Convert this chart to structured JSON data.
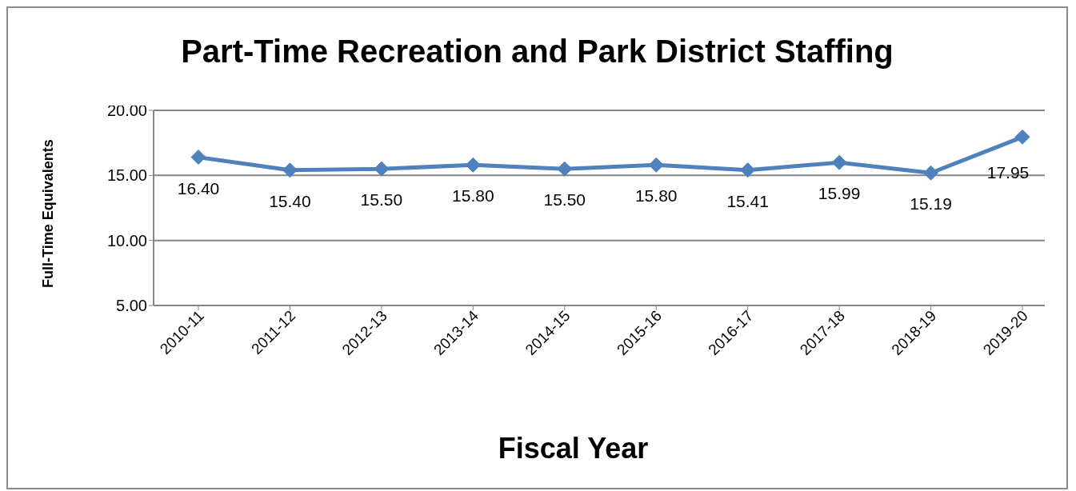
{
  "chart_data": {
    "type": "line",
    "title": "Part-Time Recreation and Park District Staffing",
    "xlabel": "Fiscal Year",
    "ylabel": "Full-Time Equivalents",
    "categories": [
      "2010-11",
      "2011-12",
      "2012-13",
      "2013-14",
      "2014-15",
      "2015-16",
      "2016-17",
      "2017-18",
      "2018-19",
      "2019-20"
    ],
    "series": [
      {
        "color": "#4f81bd",
        "values": [
          16.4,
          15.4,
          15.5,
          15.8,
          15.5,
          15.8,
          15.41,
          15.99,
          15.19,
          17.95
        ],
        "value_labels": [
          "16.40",
          "15.40",
          "15.50",
          "15.80",
          "15.50",
          "15.80",
          "15.41",
          "15.99",
          "15.19",
          "17.95"
        ]
      }
    ],
    "ylim": [
      5,
      20
    ],
    "yticks": [
      {
        "value": 5,
        "label": "5.00"
      },
      {
        "value": 10,
        "label": "10.00"
      },
      {
        "value": 15,
        "label": "15.00"
      },
      {
        "value": 20,
        "label": "20.00"
      }
    ],
    "grid": "y",
    "marker": "diamond",
    "line_style": "solid"
  }
}
